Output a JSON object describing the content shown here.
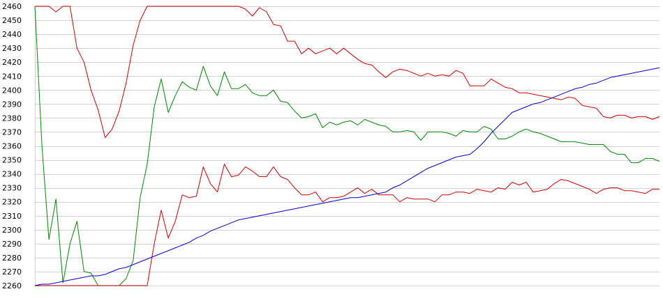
{
  "chart_data": {
    "type": "line",
    "title": "",
    "xlabel": "",
    "ylabel": "",
    "grid": true,
    "legend": "none",
    "ylim": [
      2260,
      2460
    ],
    "yticks": [
      2260,
      2270,
      2280,
      2290,
      2300,
      2310,
      2320,
      2330,
      2340,
      2350,
      2360,
      2370,
      2380,
      2390,
      2400,
      2410,
      2420,
      2430,
      2440,
      2450,
      2460
    ],
    "x": [
      0,
      2,
      4,
      6,
      8,
      10,
      12,
      14,
      16,
      18,
      20,
      22,
      24,
      26,
      28,
      30,
      32,
      34,
      36,
      38,
      40,
      42,
      44,
      46,
      48,
      50,
      52,
      54,
      56,
      58,
      60,
      62,
      64,
      66,
      68,
      70,
      72,
      74,
      76,
      78,
      80,
      82,
      84,
      86,
      88,
      90,
      92,
      94,
      96,
      98,
      100,
      102,
      104,
      106,
      108,
      110,
      112,
      114,
      116,
      118,
      120,
      122,
      124,
      126,
      128,
      130,
      132,
      134,
      136,
      138,
      140,
      142,
      144,
      146,
      148,
      150,
      152,
      154,
      156,
      158,
      160,
      162,
      164,
      166,
      168,
      170,
      172,
      174,
      176,
      178
    ],
    "series": [
      {
        "color": "#cc0000",
        "values": [
          2460,
          2460,
          2460,
          2456,
          2460,
          2460,
          2430,
          2420,
          2400,
          2386,
          2366,
          2372,
          2385,
          2405,
          2432,
          2450,
          2460,
          2460,
          2460,
          2460,
          2460,
          2460,
          2460,
          2460,
          2460,
          2460,
          2460,
          2460,
          2460,
          2460,
          2458,
          2453,
          2459,
          2456,
          2447,
          2446,
          2435,
          2435,
          2426,
          2430,
          2426,
          2428,
          2430,
          2426,
          2430,
          2426,
          2422,
          2419,
          2418,
          2413,
          2409,
          2413,
          2415,
          2414,
          2412,
          2410,
          2412,
          2410,
          2411,
          2410,
          2414,
          2412,
          2403,
          2403,
          2403,
          2408,
          2405,
          2402,
          2401,
          2398,
          2398,
          2397,
          2396,
          2395,
          2394,
          2393,
          2395,
          2394,
          2389,
          2388,
          2387,
          2381,
          2380,
          2382,
          2382,
          2380,
          2381,
          2381,
          2379,
          2381
        ]
      },
      {
        "color": "#008800",
        "values": [
          2460,
          2360,
          2293,
          2322,
          2262,
          2290,
          2306,
          2270,
          2269,
          2260,
          2260,
          2260,
          2260,
          2265,
          2278,
          2323,
          2347,
          2388,
          2408,
          2384,
          2396,
          2406,
          2402,
          2400,
          2417,
          2403,
          2396,
          2413,
          2401,
          2401,
          2404,
          2398,
          2396,
          2396,
          2400,
          2392,
          2391,
          2385,
          2380,
          2381,
          2383,
          2373,
          2377,
          2375,
          2377,
          2378,
          2375,
          2379,
          2377,
          2375,
          2374,
          2370,
          2370,
          2371,
          2370,
          2364,
          2370,
          2370,
          2370,
          2369,
          2367,
          2371,
          2370,
          2370,
          2374,
          2372,
          2365,
          2365,
          2367,
          2370,
          2372,
          2370,
          2369,
          2367,
          2365,
          2363,
          2363,
          2363,
          2362,
          2361,
          2361,
          2361,
          2356,
          2354,
          2354,
          2348,
          2348,
          2351,
          2351,
          2349
        ]
      },
      {
        "color": "#cc0000",
        "values": [
          2260,
          2260,
          2260,
          2260,
          2260,
          2260,
          2260,
          2260,
          2260,
          2260,
          2260,
          2260,
          2260,
          2260,
          2260,
          2260,
          2260,
          2290,
          2314,
          2294,
          2306,
          2325,
          2323,
          2324,
          2345,
          2333,
          2327,
          2347,
          2338,
          2339,
          2345,
          2342,
          2338,
          2338,
          2345,
          2338,
          2336,
          2330,
          2325,
          2325,
          2327,
          2320,
          2323,
          2323,
          2324,
          2327,
          2330,
          2326,
          2329,
          2325,
          2325,
          2325,
          2320,
          2323,
          2322,
          2322,
          2322,
          2320,
          2325,
          2325,
          2327,
          2327,
          2326,
          2329,
          2328,
          2327,
          2330,
          2329,
          2334,
          2332,
          2334,
          2327,
          2328,
          2329,
          2333,
          2336,
          2335,
          2333,
          2331,
          2329,
          2326,
          2329,
          2330,
          2330,
          2328,
          2328,
          2327,
          2326,
          2329,
          2329
        ]
      },
      {
        "color": "#0000cc",
        "values": [
          2260,
          2261,
          2261,
          2262,
          2263,
          2264,
          2265,
          2266,
          2267,
          2267,
          2268,
          2270,
          2272,
          2273,
          2275,
          2277,
          2279,
          2281,
          2283,
          2285,
          2287,
          2289,
          2291,
          2294,
          2296,
          2299,
          2301,
          2303,
          2305,
          2307,
          2308,
          2309,
          2310,
          2311,
          2312,
          2313,
          2314,
          2315,
          2316,
          2317,
          2318,
          2319,
          2320,
          2321,
          2322,
          2323,
          2323,
          2324,
          2325,
          2326,
          2327,
          2330,
          2332,
          2335,
          2338,
          2341,
          2344,
          2346,
          2348,
          2350,
          2352,
          2353,
          2354,
          2358,
          2363,
          2369,
          2374,
          2379,
          2384,
          2386,
          2388,
          2390,
          2391,
          2393,
          2395,
          2397,
          2399,
          2401,
          2402,
          2404,
          2405,
          2407,
          2409,
          2410,
          2411,
          2412,
          2413,
          2414,
          2415,
          2416
        ]
      }
    ]
  }
}
